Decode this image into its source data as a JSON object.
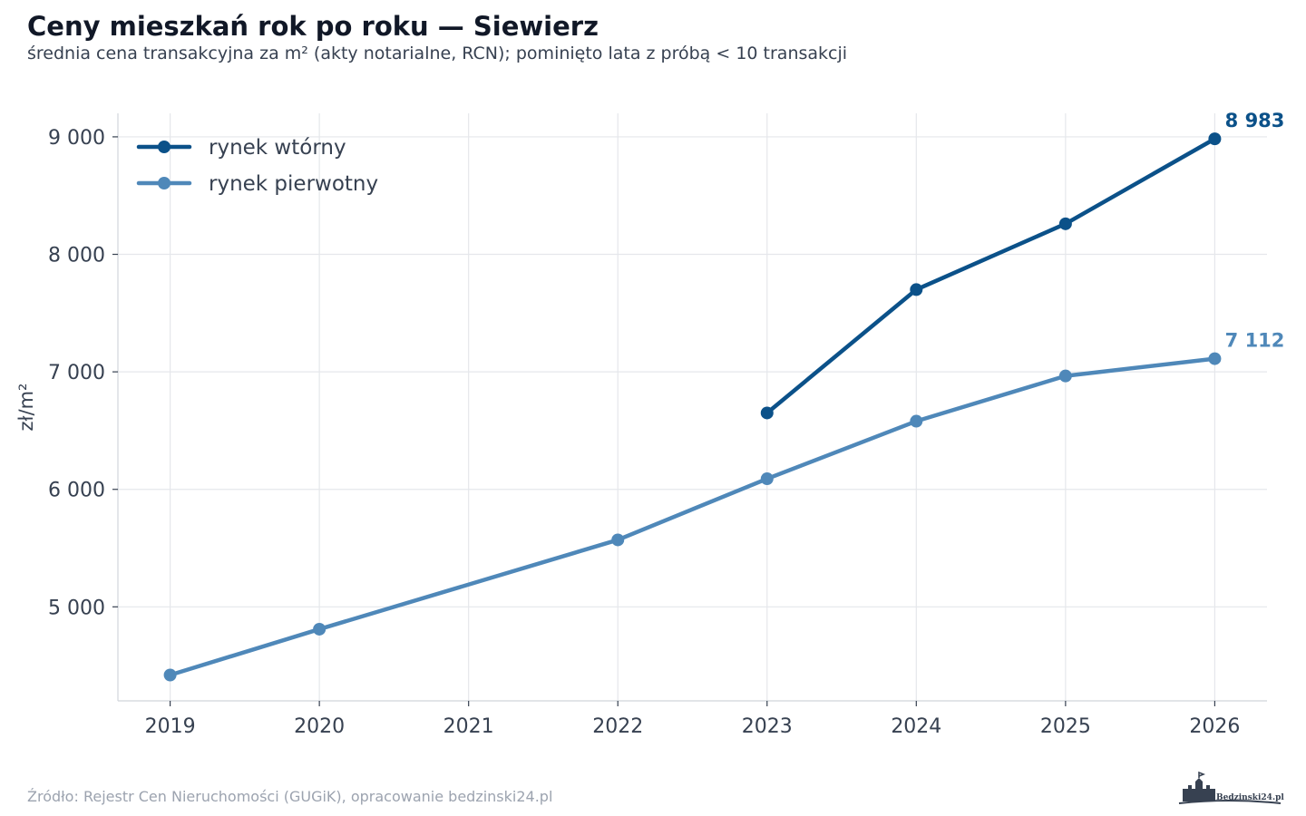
{
  "header": {
    "title": "Ceny mieszkań rok po roku — Siewierz",
    "subtitle": "średnia cena transakcyjna za m² (akty notarialne, RCN); pominięto lata z próbą < 10 transakcji"
  },
  "footer": {
    "source": "Źródło: Rejestr Cen Nieruchomości (GUGiK), opracowanie bedzinski24.pl",
    "logo_text": "Bedzinski24.pl"
  },
  "chart_data": {
    "type": "line",
    "title": "Ceny mieszkań rok po roku — Siewierz",
    "subtitle": "średnia cena transakcyjna za m² (akty notarialne, RCN); pominięto lata z próbą < 10 transakcji",
    "ylabel": "zł/m²",
    "xlabel": "",
    "x": [
      2019,
      2020,
      2021,
      2022,
      2023,
      2024,
      2025,
      2026
    ],
    "x_tick_labels": [
      "2019",
      "2020",
      "2021",
      "2022",
      "2023",
      "2024",
      "2025",
      "2026"
    ],
    "xlim": [
      2018.65,
      2026.35
    ],
    "ylim": [
      4200,
      9200
    ],
    "y_ticks": [
      5000,
      6000,
      7000,
      8000,
      9000
    ],
    "y_tick_labels": [
      "5 000",
      "6 000",
      "7 000",
      "8 000",
      "9 000"
    ],
    "grid": true,
    "legend_position": "top-left",
    "series": [
      {
        "name": "rynek wtórny",
        "color": "#0b5189",
        "points": [
          [
            2023,
            6650
          ],
          [
            2024,
            7700
          ],
          [
            2025,
            8260
          ],
          [
            2026,
            8983
          ]
        ],
        "end_label": "8 983"
      },
      {
        "name": "rynek pierwotny",
        "color": "#4f88b9",
        "points": [
          [
            2019,
            4420
          ],
          [
            2020,
            4810
          ],
          [
            2022,
            5570
          ],
          [
            2023,
            6090
          ],
          [
            2024,
            6580
          ],
          [
            2025,
            6965
          ],
          [
            2026,
            7112
          ]
        ],
        "end_label": "7 112"
      }
    ]
  }
}
